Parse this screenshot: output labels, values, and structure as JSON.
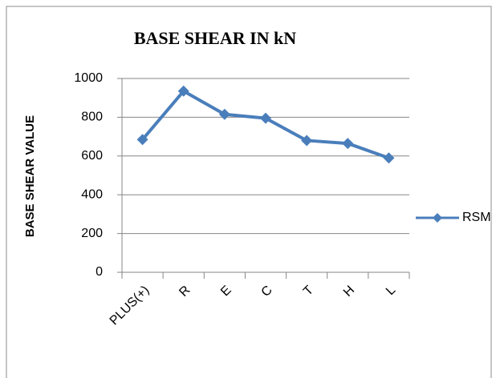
{
  "chart_data": {
    "type": "line",
    "title": "BASE SHEAR IN kN",
    "y_label": "BASE SHEAR VALUE",
    "categories": [
      "PLUS(+)",
      "R",
      "E",
      "C",
      "T",
      "H",
      "L"
    ],
    "series": [
      {
        "name": "RSM",
        "color": "#4a7ebb",
        "values": [
          685,
          935,
          815,
          795,
          680,
          665,
          590
        ]
      }
    ],
    "ylim": [
      0,
      1000
    ],
    "yticks": [
      0,
      200,
      400,
      600,
      800,
      1000
    ],
    "grid": true,
    "legend": "right"
  }
}
